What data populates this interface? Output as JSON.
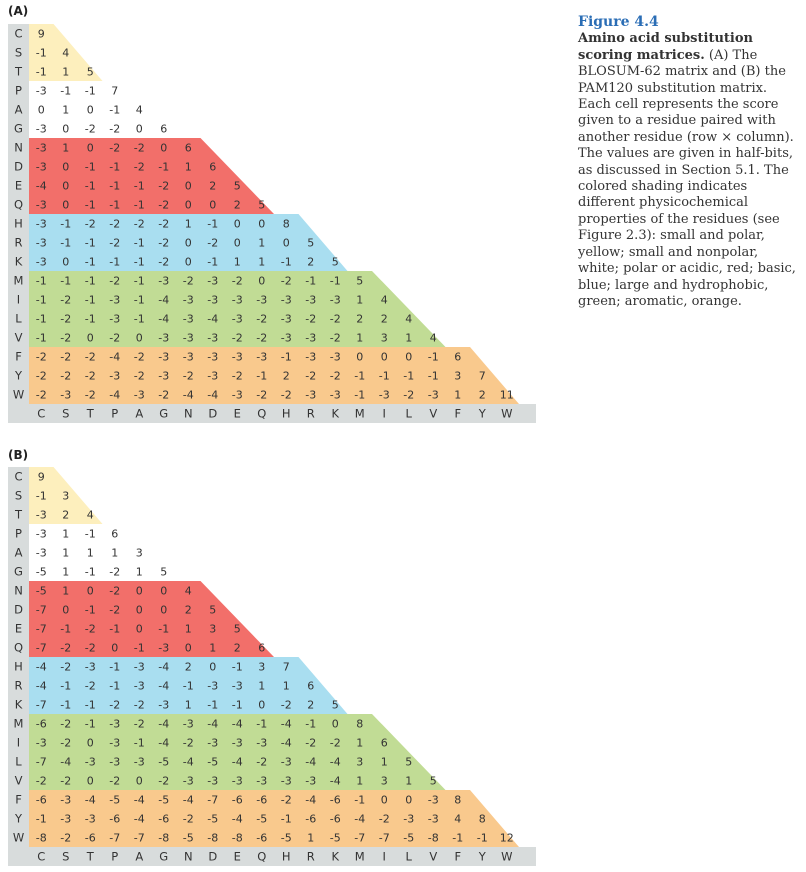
{
  "panels": [
    {
      "label": "(A)",
      "residues": [
        "C",
        "S",
        "T",
        "P",
        "A",
        "G",
        "N",
        "D",
        "E",
        "Q",
        "H",
        "R",
        "K",
        "M",
        "I",
        "L",
        "V",
        "F",
        "Y",
        "W"
      ],
      "rows": [
        [
          "9"
        ],
        [
          "-1",
          "4"
        ],
        [
          "-1",
          "1",
          "5"
        ],
        [
          "-3",
          "-1",
          "-1",
          "7"
        ],
        [
          "0",
          "1",
          "0",
          "-1",
          "4"
        ],
        [
          "-3",
          "0",
          "-2",
          "-2",
          "0",
          "6"
        ],
        [
          "-3",
          "1",
          "0",
          "-2",
          "-2",
          "0",
          "6"
        ],
        [
          "-3",
          "0",
          "-1",
          "-1",
          "-2",
          "-1",
          "1",
          "6"
        ],
        [
          "-4",
          "0",
          "-1",
          "-1",
          "-1",
          "-2",
          "0",
          "2",
          "5"
        ],
        [
          "-3",
          "0",
          "-1",
          "-1",
          "-1",
          "-2",
          "0",
          "0",
          "2",
          "5"
        ],
        [
          "-3",
          "-1",
          "-2",
          "-2",
          "-2",
          "-2",
          "1",
          "-1",
          "0",
          "0",
          "8"
        ],
        [
          "-3",
          "-1",
          "-1",
          "-2",
          "-1",
          "-2",
          "0",
          "-2",
          "0",
          "1",
          "0",
          "5"
        ],
        [
          "-3",
          "0",
          "-1",
          "-1",
          "-1",
          "-2",
          "0",
          "-1",
          "1",
          "1",
          "-1",
          "2",
          "5"
        ],
        [
          "-1",
          "-1",
          "-1",
          "-2",
          "-1",
          "-3",
          "-2",
          "-3",
          "-2",
          "0",
          "-2",
          "-1",
          "-1",
          "5"
        ],
        [
          "-1",
          "-2",
          "-1",
          "-3",
          "-1",
          "-4",
          "-3",
          "-3",
          "-3",
          "-3",
          "-3",
          "-3",
          "-3",
          "1",
          "4"
        ],
        [
          "-1",
          "-2",
          "-1",
          "-3",
          "-1",
          "-4",
          "-3",
          "-4",
          "-3",
          "-2",
          "-3",
          "-2",
          "-2",
          "2",
          "2",
          "4"
        ],
        [
          "-1",
          "-2",
          "0",
          "-2",
          "0",
          "-3",
          "-3",
          "-3",
          "-2",
          "-2",
          "-3",
          "-3",
          "-2",
          "1",
          "3",
          "1",
          "4"
        ],
        [
          "-2",
          "-2",
          "-2",
          "-4",
          "-2",
          "-3",
          "-3",
          "-3",
          "-3",
          "-3",
          "-1",
          "-3",
          "-3",
          "0",
          "0",
          "0",
          "-1",
          "6"
        ],
        [
          "-2",
          "-2",
          "-2",
          "-3",
          "-2",
          "-3",
          "-2",
          "-3",
          "-2",
          "-1",
          "2",
          "-2",
          "-2",
          "-1",
          "-1",
          "-1",
          "-1",
          "3",
          "7"
        ],
        [
          "-2",
          "-3",
          "-2",
          "-4",
          "-3",
          "-2",
          "-4",
          "-4",
          "-3",
          "-2",
          "-2",
          "-3",
          "-3",
          "-1",
          "-3",
          "-2",
          "-3",
          "1",
          "2",
          "11"
        ]
      ]
    },
    {
      "label": "(B)",
      "residues": [
        "C",
        "S",
        "T",
        "P",
        "A",
        "G",
        "N",
        "D",
        "E",
        "Q",
        "H",
        "R",
        "K",
        "M",
        "I",
        "L",
        "V",
        "F",
        "Y",
        "W"
      ],
      "rows": [
        [
          "9"
        ],
        [
          "-1",
          "3"
        ],
        [
          "-3",
          "2",
          "4"
        ],
        [
          "-3",
          "1",
          "-1",
          "6"
        ],
        [
          "-3",
          "1",
          "1",
          "1",
          "3"
        ],
        [
          "-5",
          "1",
          "-1",
          "-2",
          "1",
          "5"
        ],
        [
          "-5",
          "1",
          "0",
          "-2",
          "0",
          "0",
          "4"
        ],
        [
          "-7",
          "0",
          "-1",
          "-2",
          "0",
          "0",
          "2",
          "5"
        ],
        [
          "-7",
          "-1",
          "-2",
          "-1",
          "0",
          "-1",
          "1",
          "3",
          "5"
        ],
        [
          "-7",
          "-2",
          "-2",
          "0",
          "-1",
          "-3",
          "0",
          "1",
          "2",
          "6"
        ],
        [
          "-4",
          "-2",
          "-3",
          "-1",
          "-3",
          "-4",
          "2",
          "0",
          "-1",
          "3",
          "7"
        ],
        [
          "-4",
          "-1",
          "-2",
          "-1",
          "-3",
          "-4",
          "-1",
          "-3",
          "-3",
          "1",
          "1",
          "6"
        ],
        [
          "-7",
          "-1",
          "-1",
          "-2",
          "-2",
          "-3",
          "1",
          "-1",
          "-1",
          "0",
          "-2",
          "2",
          "5"
        ],
        [
          "-6",
          "-2",
          "-1",
          "-3",
          "-2",
          "-4",
          "-3",
          "-4",
          "-4",
          "-1",
          "-4",
          "-1",
          "0",
          "8"
        ],
        [
          "-3",
          "-2",
          "0",
          "-3",
          "-1",
          "-4",
          "-2",
          "-3",
          "-3",
          "-3",
          "-4",
          "-2",
          "-2",
          "1",
          "6"
        ],
        [
          "-7",
          "-4",
          "-3",
          "-3",
          "-3",
          "-5",
          "-4",
          "-5",
          "-4",
          "-2",
          "-3",
          "-4",
          "-4",
          "3",
          "1",
          "5"
        ],
        [
          "-2",
          "-2",
          "0",
          "-2",
          "0",
          "-2",
          "-3",
          "-3",
          "-3",
          "-3",
          "-3",
          "-3",
          "-4",
          "1",
          "3",
          "1",
          "5"
        ],
        [
          "-6",
          "-3",
          "-4",
          "-5",
          "-4",
          "-5",
          "-4",
          "-7",
          "-6",
          "-6",
          "-2",
          "-4",
          "-6",
          "-1",
          "0",
          "0",
          "-3",
          "8"
        ],
        [
          "-1",
          "-3",
          "-3",
          "-6",
          "-4",
          "-6",
          "-2",
          "-5",
          "-4",
          "-5",
          "-1",
          "-6",
          "-6",
          "-4",
          "-2",
          "-3",
          "-3",
          "4",
          "8"
        ],
        [
          "-8",
          "-2",
          "-6",
          "-7",
          "-7",
          "-8",
          "-5",
          "-8",
          "-8",
          "-6",
          "-5",
          "1",
          "-5",
          "-7",
          "-7",
          "-5",
          "-8",
          "-1",
          "-1",
          "12"
        ]
      ]
    }
  ],
  "colors": {
    "small_polar": "#fdefbd",
    "small_nonpolar": "#ffffff",
    "polar_acidic": "#f26f6a",
    "basic": "#a9def0",
    "large_hydrophobic": "#c1dc95",
    "aromatic": "#f9c98d",
    "axis_bar": "#d8dcdc",
    "text": "#333333",
    "caption_title": "#2a6db5"
  },
  "caption": {
    "title": "Figure 4.4",
    "bold": "Amino acid substitution scoring matrices.",
    "body": " (A) The BLOSUM-62 matrix and (B) the PAM120 substitution matrix. Each cell represents the score given to a residue paired with another residue (row × column). The values are given in half-bits, as discussed in Section 5.1. The colored shading indicates different physicochemical properties of the residues (see Figure 2.3): small and polar, yellow; small and nonpolar, white; polar or acidic, red; basic, blue; large and hydrophobic, green; aromatic, orange."
  }
}
